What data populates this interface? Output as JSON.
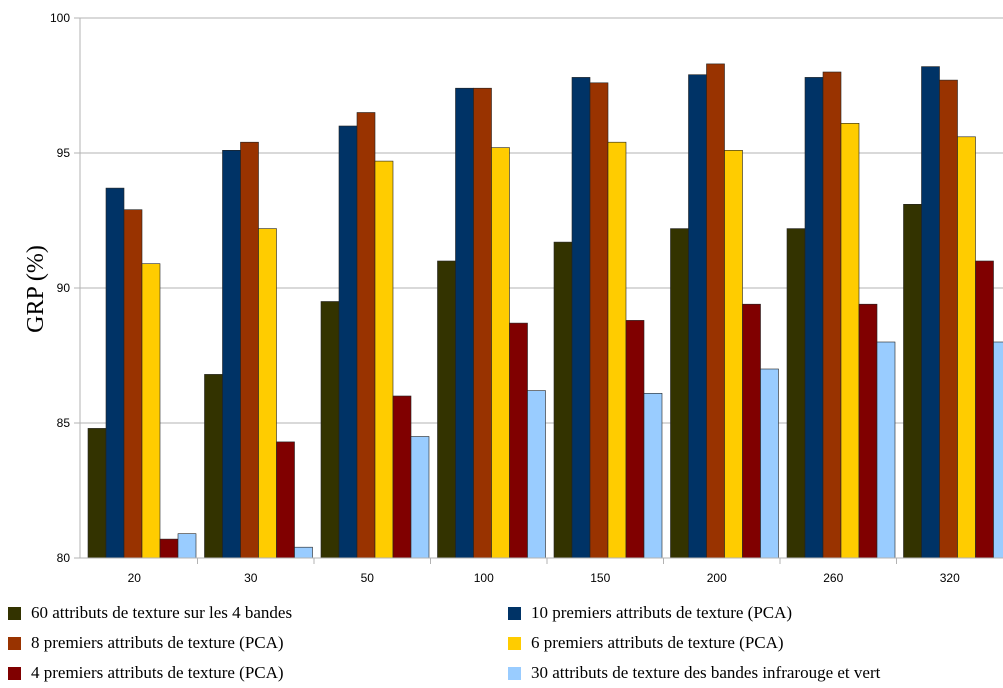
{
  "chart_data": {
    "type": "bar",
    "title": "",
    "xlabel": "",
    "ylabel": "GRP (%)",
    "ylim": [
      80,
      100
    ],
    "yticks": [
      80,
      85,
      90,
      95,
      100
    ],
    "grid": true,
    "legend_position": "bottom",
    "categories": [
      "20",
      "30",
      "50",
      "100",
      "150",
      "200",
      "260",
      "320"
    ],
    "series": [
      {
        "name": "60 attributs de texture sur les 4 bandes",
        "color": "#333300",
        "values": [
          84.8,
          86.8,
          89.5,
          91.0,
          91.7,
          92.2,
          92.2,
          93.1
        ]
      },
      {
        "name": "10 premiers attributs de texture (PCA)",
        "color": "#003366",
        "values": [
          93.7,
          95.1,
          96.0,
          97.4,
          97.8,
          97.9,
          97.8,
          98.2
        ]
      },
      {
        "name": "8 premiers attributs de texture (PCA)",
        "color": "#993300",
        "values": [
          92.9,
          95.4,
          96.5,
          97.4,
          97.6,
          98.3,
          98.0,
          97.7
        ]
      },
      {
        "name": "6 premiers attributs de texture (PCA)",
        "color": "#ffcc00",
        "values": [
          90.9,
          92.2,
          94.7,
          95.2,
          95.4,
          95.1,
          96.1,
          95.6
        ]
      },
      {
        "name": "4 premiers attributs de texture (PCA)",
        "color": "#800000",
        "values": [
          80.7,
          84.3,
          86.0,
          88.7,
          88.8,
          89.4,
          89.4,
          91.0
        ]
      },
      {
        "name": "30 attributs de texture des bandes infrarouge et vert",
        "color": "#99ccff",
        "values": [
          80.9,
          80.4,
          84.5,
          86.2,
          86.1,
          87.0,
          88.0,
          88.0
        ]
      }
    ]
  }
}
